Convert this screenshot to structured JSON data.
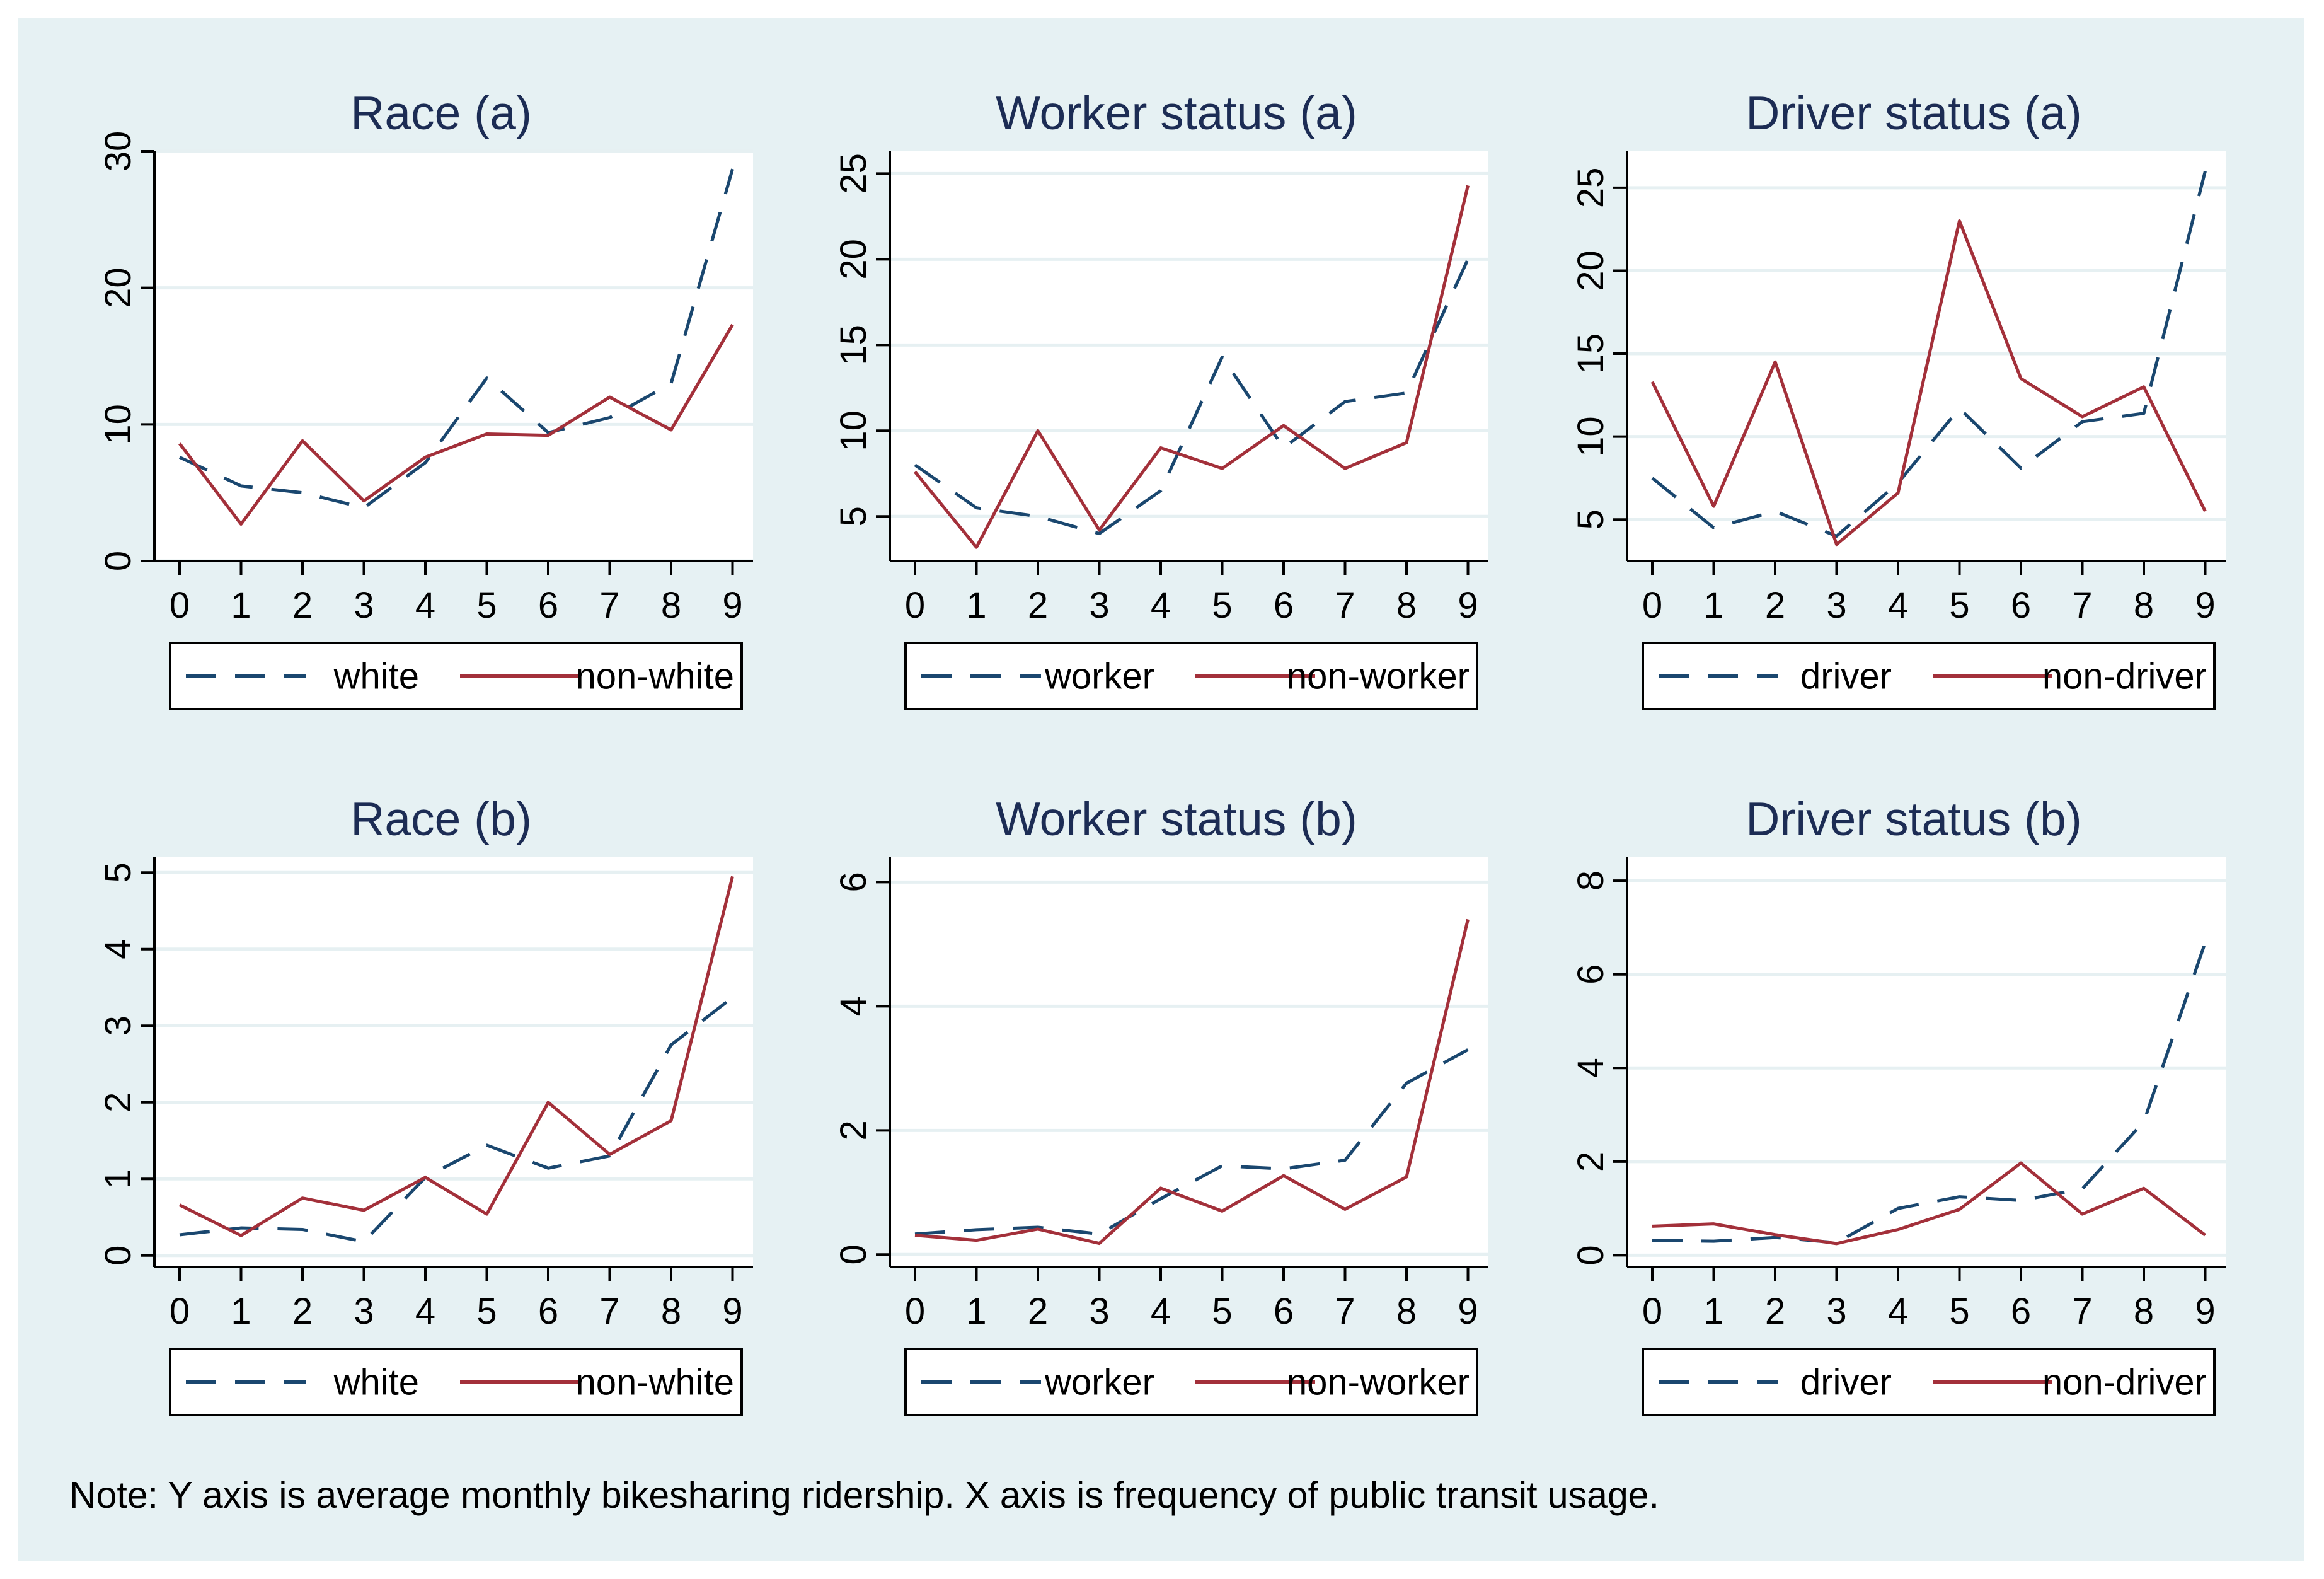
{
  "figure": {
    "note": "Note: Y axis is average monthly bikesharing ridership.  X axis is frequency of public transit usage.",
    "colors": {
      "outer_background": "#e6f1f3",
      "plot_background": "#ffffff",
      "grid": "#e6f0f2",
      "title": "#1c2c54",
      "series_dashed": "#1a476f",
      "series_solid": "#a3303a",
      "axis": "#000000"
    }
  },
  "chart_data": [
    {
      "type": "line",
      "title": "Race (a)",
      "x": [
        0,
        1,
        2,
        3,
        4,
        5,
        6,
        7,
        8,
        9
      ],
      "ylim": [
        0,
        30
      ],
      "yticks": [
        0,
        10,
        20,
        30
      ],
      "series": [
        {
          "name": "white",
          "style": "dashed",
          "values": [
            7.6,
            5.5,
            5.0,
            3.9,
            7.2,
            13.4,
            9.4,
            10.5,
            13.0,
            28.7
          ]
        },
        {
          "name": "non-white",
          "style": "solid",
          "values": [
            8.6,
            2.7,
            8.8,
            4.4,
            7.6,
            9.3,
            9.2,
            12.0,
            9.6,
            17.3
          ]
        }
      ]
    },
    {
      "type": "line",
      "title": "Worker status (a)",
      "x": [
        0,
        1,
        2,
        3,
        4,
        5,
        6,
        7,
        8,
        9
      ],
      "ylim": [
        2.4,
        26.3
      ],
      "yticks": [
        5,
        10,
        15,
        20,
        25
      ],
      "series": [
        {
          "name": "worker",
          "style": "dashed",
          "values": [
            8.0,
            5.5,
            5.0,
            4.0,
            6.5,
            14.3,
            9.0,
            11.7,
            12.2,
            20.0
          ]
        },
        {
          "name": "non-worker",
          "style": "solid",
          "values": [
            7.6,
            3.2,
            10.0,
            4.2,
            9.0,
            7.8,
            10.3,
            7.8,
            9.3,
            24.3
          ]
        }
      ]
    },
    {
      "type": "line",
      "title": "Driver status (a)",
      "x": [
        0,
        1,
        2,
        3,
        4,
        5,
        6,
        7,
        8,
        9
      ],
      "ylim": [
        2.5,
        27.2
      ],
      "yticks": [
        5,
        10,
        15,
        20,
        25
      ],
      "series": [
        {
          "name": "driver",
          "style": "dashed",
          "values": [
            7.5,
            4.5,
            5.5,
            4.0,
            7.2,
            11.7,
            8.1,
            10.9,
            11.4,
            26.0
          ]
        },
        {
          "name": "non-driver",
          "style": "solid",
          "values": [
            13.3,
            5.8,
            14.5,
            3.5,
            6.6,
            23.0,
            13.5,
            11.2,
            13.0,
            5.5
          ]
        }
      ]
    },
    {
      "type": "line",
      "title": "Race (b)",
      "x": [
        0,
        1,
        2,
        3,
        4,
        5,
        6,
        7,
        8,
        9
      ],
      "ylim": [
        -0.15,
        5.2
      ],
      "yticks": [
        0,
        1,
        2,
        3,
        4,
        5
      ],
      "series": [
        {
          "name": "white",
          "style": "dashed",
          "values": [
            0.27,
            0.36,
            0.34,
            0.18,
            1.02,
            1.44,
            1.14,
            1.3,
            2.75,
            3.37
          ]
        },
        {
          "name": "non-white",
          "style": "solid",
          "values": [
            0.66,
            0.26,
            0.75,
            0.59,
            1.02,
            0.54,
            2.0,
            1.32,
            1.76,
            4.95
          ]
        }
      ]
    },
    {
      "type": "line",
      "title": "Worker status (b)",
      "x": [
        0,
        1,
        2,
        3,
        4,
        5,
        6,
        7,
        8,
        9
      ],
      "ylim": [
        -0.2,
        6.4
      ],
      "yticks": [
        0,
        2,
        4,
        6
      ],
      "series": [
        {
          "name": "worker",
          "style": "dashed",
          "values": [
            0.33,
            0.4,
            0.44,
            0.33,
            0.9,
            1.43,
            1.38,
            1.52,
            2.76,
            3.3
          ]
        },
        {
          "name": "non-worker",
          "style": "solid",
          "values": [
            0.31,
            0.23,
            0.41,
            0.18,
            1.07,
            0.7,
            1.27,
            0.73,
            1.25,
            5.4
          ]
        }
      ]
    },
    {
      "type": "line",
      "title": "Driver status (b)",
      "x": [
        0,
        1,
        2,
        3,
        4,
        5,
        6,
        7,
        8,
        9
      ],
      "ylim": [
        -0.25,
        8.5
      ],
      "yticks": [
        0,
        2,
        4,
        6,
        8
      ],
      "series": [
        {
          "name": "driver",
          "style": "dashed",
          "values": [
            0.32,
            0.3,
            0.38,
            0.27,
            1.0,
            1.25,
            1.17,
            1.42,
            2.85,
            6.68
          ]
        },
        {
          "name": "non-driver",
          "style": "solid",
          "values": [
            0.62,
            0.67,
            0.44,
            0.25,
            0.55,
            0.98,
            1.97,
            0.88,
            1.43,
            0.43
          ]
        }
      ]
    }
  ]
}
